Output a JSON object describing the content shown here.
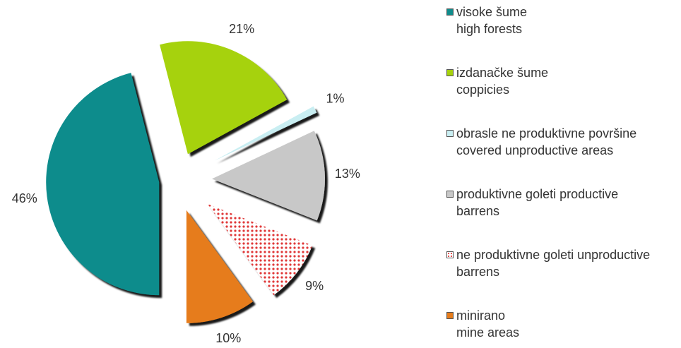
{
  "chart_data": {
    "type": "pie",
    "categories": [
      "visoke šume\nhigh forests",
      "izdanačke šume\ncoppicies",
      "obrasle ne produktivne površine\ncovered unproductive areas",
      "produktivne goleti productive\nbarrens",
      "ne produktivne goleti  unproductive\nbarrens",
      "minirano\nmine areas"
    ],
    "values": [
      46,
      21,
      1,
      13,
      9,
      10
    ],
    "value_labels": [
      "46%",
      "21%",
      "1%",
      "13%",
      "9%",
      "10%"
    ],
    "colors": [
      "#0f8c8c",
      "#a6d20c",
      "#c9eef2",
      "#c8c8c8",
      "#e03838",
      "#e67c1c"
    ],
    "legend": "right"
  }
}
